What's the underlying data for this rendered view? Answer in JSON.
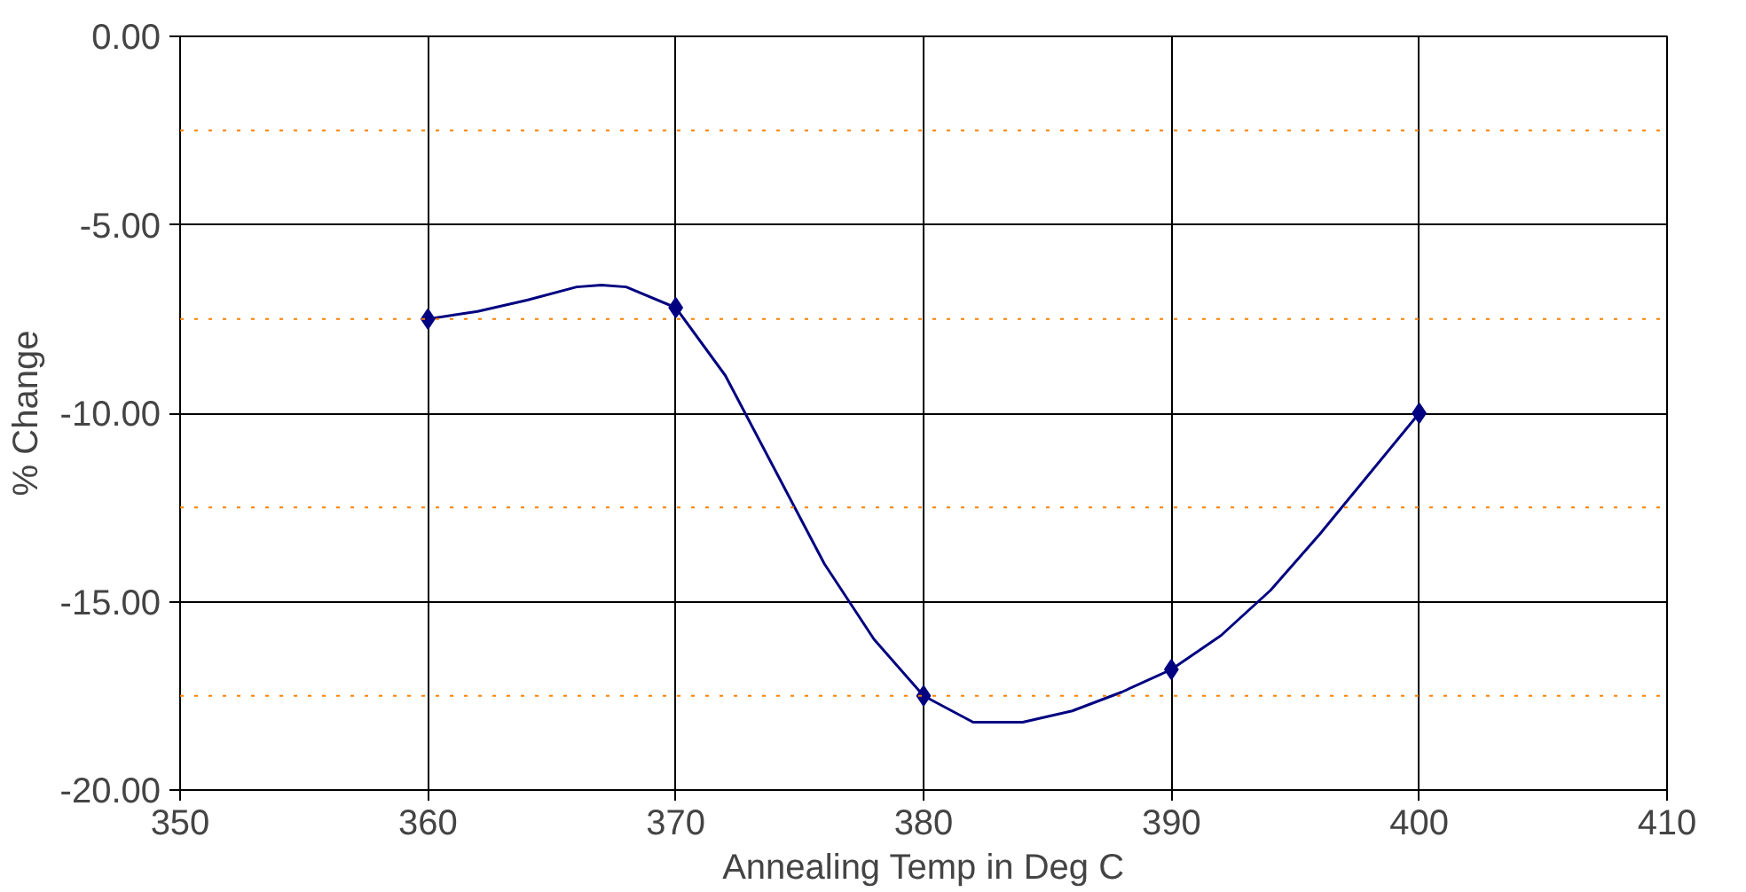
{
  "chart_data": {
    "type": "line",
    "xlabel": "Annealing Temp in Deg C",
    "ylabel": "% Change",
    "x": [
      360,
      370,
      380,
      390,
      400
    ],
    "series": [
      {
        "type": "scatter",
        "marker": "diamond",
        "color": "#000080",
        "values": [
          -7.5,
          -7.2,
          -17.5,
          -16.8,
          -10.0
        ]
      },
      {
        "color": "#000080",
        "x": [
          360,
          362,
          364,
          366,
          367,
          368,
          370,
          372,
          374,
          376,
          378,
          380,
          382,
          384,
          386,
          388,
          390,
          392,
          394,
          396,
          398,
          400
        ],
        "values": [
          -7.5,
          -7.3,
          -7.0,
          -6.65,
          -6.6,
          -6.65,
          -7.2,
          -9.0,
          -11.5,
          -14.0,
          -16.0,
          -17.5,
          -18.2,
          -18.2,
          -17.9,
          -17.4,
          -16.8,
          -15.9,
          -14.7,
          -13.2,
          -11.6,
          -10.0
        ]
      }
    ],
    "xlim": [
      350,
      410
    ],
    "xticks": [
      350,
      360,
      370,
      380,
      390,
      400,
      410
    ],
    "ylim": [
      -20,
      0
    ],
    "yticks": [
      {
        "value": -20,
        "label": "-20.00"
      },
      {
        "value": -15,
        "label": "-15.00"
      },
      {
        "value": -10,
        "label": "-10.00"
      },
      {
        "value": -5,
        "label": "-5.00"
      },
      {
        "value": 0,
        "label": "0.00"
      }
    ],
    "ref_lines": [
      {
        "axis": "y",
        "value": -2.5,
        "color": "#ff8000",
        "line_style": "dotted"
      },
      {
        "axis": "y",
        "value": -7.5,
        "color": "#ff8000",
        "line_style": "dotted"
      },
      {
        "axis": "y",
        "value": -12.5,
        "color": "#ff8000",
        "line_style": "dotted"
      },
      {
        "axis": "y",
        "value": -17.5,
        "color": "#ff8000",
        "line_style": "dotted"
      }
    ],
    "grid": true,
    "line_style": "solid"
  }
}
